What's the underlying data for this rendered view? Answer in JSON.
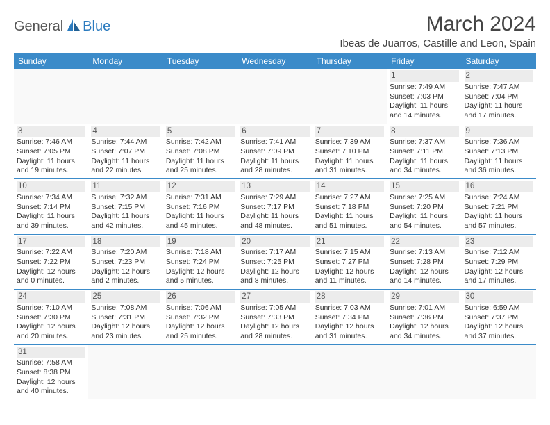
{
  "brand": {
    "part1": "General",
    "part2": "Blue"
  },
  "title": "March 2024",
  "location": "Ibeas de Juarros, Castille and Leon, Spain",
  "colors": {
    "header_bg": "#3b8bc9",
    "header_text": "#ffffff",
    "border": "#3b8bc9",
    "daynum_bg": "#ececec",
    "text": "#333333",
    "brand_gray": "#555555",
    "brand_blue": "#2b7bbf"
  },
  "layout": {
    "type": "table",
    "columns": 7,
    "rows": 6,
    "font_family": "Arial",
    "title_fontsize": 30,
    "location_fontsize": 15,
    "header_fontsize": 12,
    "cell_fontsize": 10.5
  },
  "weekdays": [
    "Sunday",
    "Monday",
    "Tuesday",
    "Wednesday",
    "Thursday",
    "Friday",
    "Saturday"
  ],
  "cells": [
    [
      null,
      null,
      null,
      null,
      null,
      {
        "day": "1",
        "sunrise": "Sunrise: 7:49 AM",
        "sunset": "Sunset: 7:03 PM",
        "daylight1": "Daylight: 11 hours",
        "daylight2": "and 14 minutes."
      },
      {
        "day": "2",
        "sunrise": "Sunrise: 7:47 AM",
        "sunset": "Sunset: 7:04 PM",
        "daylight1": "Daylight: 11 hours",
        "daylight2": "and 17 minutes."
      }
    ],
    [
      {
        "day": "3",
        "sunrise": "Sunrise: 7:46 AM",
        "sunset": "Sunset: 7:05 PM",
        "daylight1": "Daylight: 11 hours",
        "daylight2": "and 19 minutes."
      },
      {
        "day": "4",
        "sunrise": "Sunrise: 7:44 AM",
        "sunset": "Sunset: 7:07 PM",
        "daylight1": "Daylight: 11 hours",
        "daylight2": "and 22 minutes."
      },
      {
        "day": "5",
        "sunrise": "Sunrise: 7:42 AM",
        "sunset": "Sunset: 7:08 PM",
        "daylight1": "Daylight: 11 hours",
        "daylight2": "and 25 minutes."
      },
      {
        "day": "6",
        "sunrise": "Sunrise: 7:41 AM",
        "sunset": "Sunset: 7:09 PM",
        "daylight1": "Daylight: 11 hours",
        "daylight2": "and 28 minutes."
      },
      {
        "day": "7",
        "sunrise": "Sunrise: 7:39 AM",
        "sunset": "Sunset: 7:10 PM",
        "daylight1": "Daylight: 11 hours",
        "daylight2": "and 31 minutes."
      },
      {
        "day": "8",
        "sunrise": "Sunrise: 7:37 AM",
        "sunset": "Sunset: 7:11 PM",
        "daylight1": "Daylight: 11 hours",
        "daylight2": "and 34 minutes."
      },
      {
        "day": "9",
        "sunrise": "Sunrise: 7:36 AM",
        "sunset": "Sunset: 7:13 PM",
        "daylight1": "Daylight: 11 hours",
        "daylight2": "and 36 minutes."
      }
    ],
    [
      {
        "day": "10",
        "sunrise": "Sunrise: 7:34 AM",
        "sunset": "Sunset: 7:14 PM",
        "daylight1": "Daylight: 11 hours",
        "daylight2": "and 39 minutes."
      },
      {
        "day": "11",
        "sunrise": "Sunrise: 7:32 AM",
        "sunset": "Sunset: 7:15 PM",
        "daylight1": "Daylight: 11 hours",
        "daylight2": "and 42 minutes."
      },
      {
        "day": "12",
        "sunrise": "Sunrise: 7:31 AM",
        "sunset": "Sunset: 7:16 PM",
        "daylight1": "Daylight: 11 hours",
        "daylight2": "and 45 minutes."
      },
      {
        "day": "13",
        "sunrise": "Sunrise: 7:29 AM",
        "sunset": "Sunset: 7:17 PM",
        "daylight1": "Daylight: 11 hours",
        "daylight2": "and 48 minutes."
      },
      {
        "day": "14",
        "sunrise": "Sunrise: 7:27 AM",
        "sunset": "Sunset: 7:18 PM",
        "daylight1": "Daylight: 11 hours",
        "daylight2": "and 51 minutes."
      },
      {
        "day": "15",
        "sunrise": "Sunrise: 7:25 AM",
        "sunset": "Sunset: 7:20 PM",
        "daylight1": "Daylight: 11 hours",
        "daylight2": "and 54 minutes."
      },
      {
        "day": "16",
        "sunrise": "Sunrise: 7:24 AM",
        "sunset": "Sunset: 7:21 PM",
        "daylight1": "Daylight: 11 hours",
        "daylight2": "and 57 minutes."
      }
    ],
    [
      {
        "day": "17",
        "sunrise": "Sunrise: 7:22 AM",
        "sunset": "Sunset: 7:22 PM",
        "daylight1": "Daylight: 12 hours",
        "daylight2": "and 0 minutes."
      },
      {
        "day": "18",
        "sunrise": "Sunrise: 7:20 AM",
        "sunset": "Sunset: 7:23 PM",
        "daylight1": "Daylight: 12 hours",
        "daylight2": "and 2 minutes."
      },
      {
        "day": "19",
        "sunrise": "Sunrise: 7:18 AM",
        "sunset": "Sunset: 7:24 PM",
        "daylight1": "Daylight: 12 hours",
        "daylight2": "and 5 minutes."
      },
      {
        "day": "20",
        "sunrise": "Sunrise: 7:17 AM",
        "sunset": "Sunset: 7:25 PM",
        "daylight1": "Daylight: 12 hours",
        "daylight2": "and 8 minutes."
      },
      {
        "day": "21",
        "sunrise": "Sunrise: 7:15 AM",
        "sunset": "Sunset: 7:27 PM",
        "daylight1": "Daylight: 12 hours",
        "daylight2": "and 11 minutes."
      },
      {
        "day": "22",
        "sunrise": "Sunrise: 7:13 AM",
        "sunset": "Sunset: 7:28 PM",
        "daylight1": "Daylight: 12 hours",
        "daylight2": "and 14 minutes."
      },
      {
        "day": "23",
        "sunrise": "Sunrise: 7:12 AM",
        "sunset": "Sunset: 7:29 PM",
        "daylight1": "Daylight: 12 hours",
        "daylight2": "and 17 minutes."
      }
    ],
    [
      {
        "day": "24",
        "sunrise": "Sunrise: 7:10 AM",
        "sunset": "Sunset: 7:30 PM",
        "daylight1": "Daylight: 12 hours",
        "daylight2": "and 20 minutes."
      },
      {
        "day": "25",
        "sunrise": "Sunrise: 7:08 AM",
        "sunset": "Sunset: 7:31 PM",
        "daylight1": "Daylight: 12 hours",
        "daylight2": "and 23 minutes."
      },
      {
        "day": "26",
        "sunrise": "Sunrise: 7:06 AM",
        "sunset": "Sunset: 7:32 PM",
        "daylight1": "Daylight: 12 hours",
        "daylight2": "and 25 minutes."
      },
      {
        "day": "27",
        "sunrise": "Sunrise: 7:05 AM",
        "sunset": "Sunset: 7:33 PM",
        "daylight1": "Daylight: 12 hours",
        "daylight2": "and 28 minutes."
      },
      {
        "day": "28",
        "sunrise": "Sunrise: 7:03 AM",
        "sunset": "Sunset: 7:34 PM",
        "daylight1": "Daylight: 12 hours",
        "daylight2": "and 31 minutes."
      },
      {
        "day": "29",
        "sunrise": "Sunrise: 7:01 AM",
        "sunset": "Sunset: 7:36 PM",
        "daylight1": "Daylight: 12 hours",
        "daylight2": "and 34 minutes."
      },
      {
        "day": "30",
        "sunrise": "Sunrise: 6:59 AM",
        "sunset": "Sunset: 7:37 PM",
        "daylight1": "Daylight: 12 hours",
        "daylight2": "and 37 minutes."
      }
    ],
    [
      {
        "day": "31",
        "sunrise": "Sunrise: 7:58 AM",
        "sunset": "Sunset: 8:38 PM",
        "daylight1": "Daylight: 12 hours",
        "daylight2": "and 40 minutes."
      },
      null,
      null,
      null,
      null,
      null,
      null
    ]
  ]
}
